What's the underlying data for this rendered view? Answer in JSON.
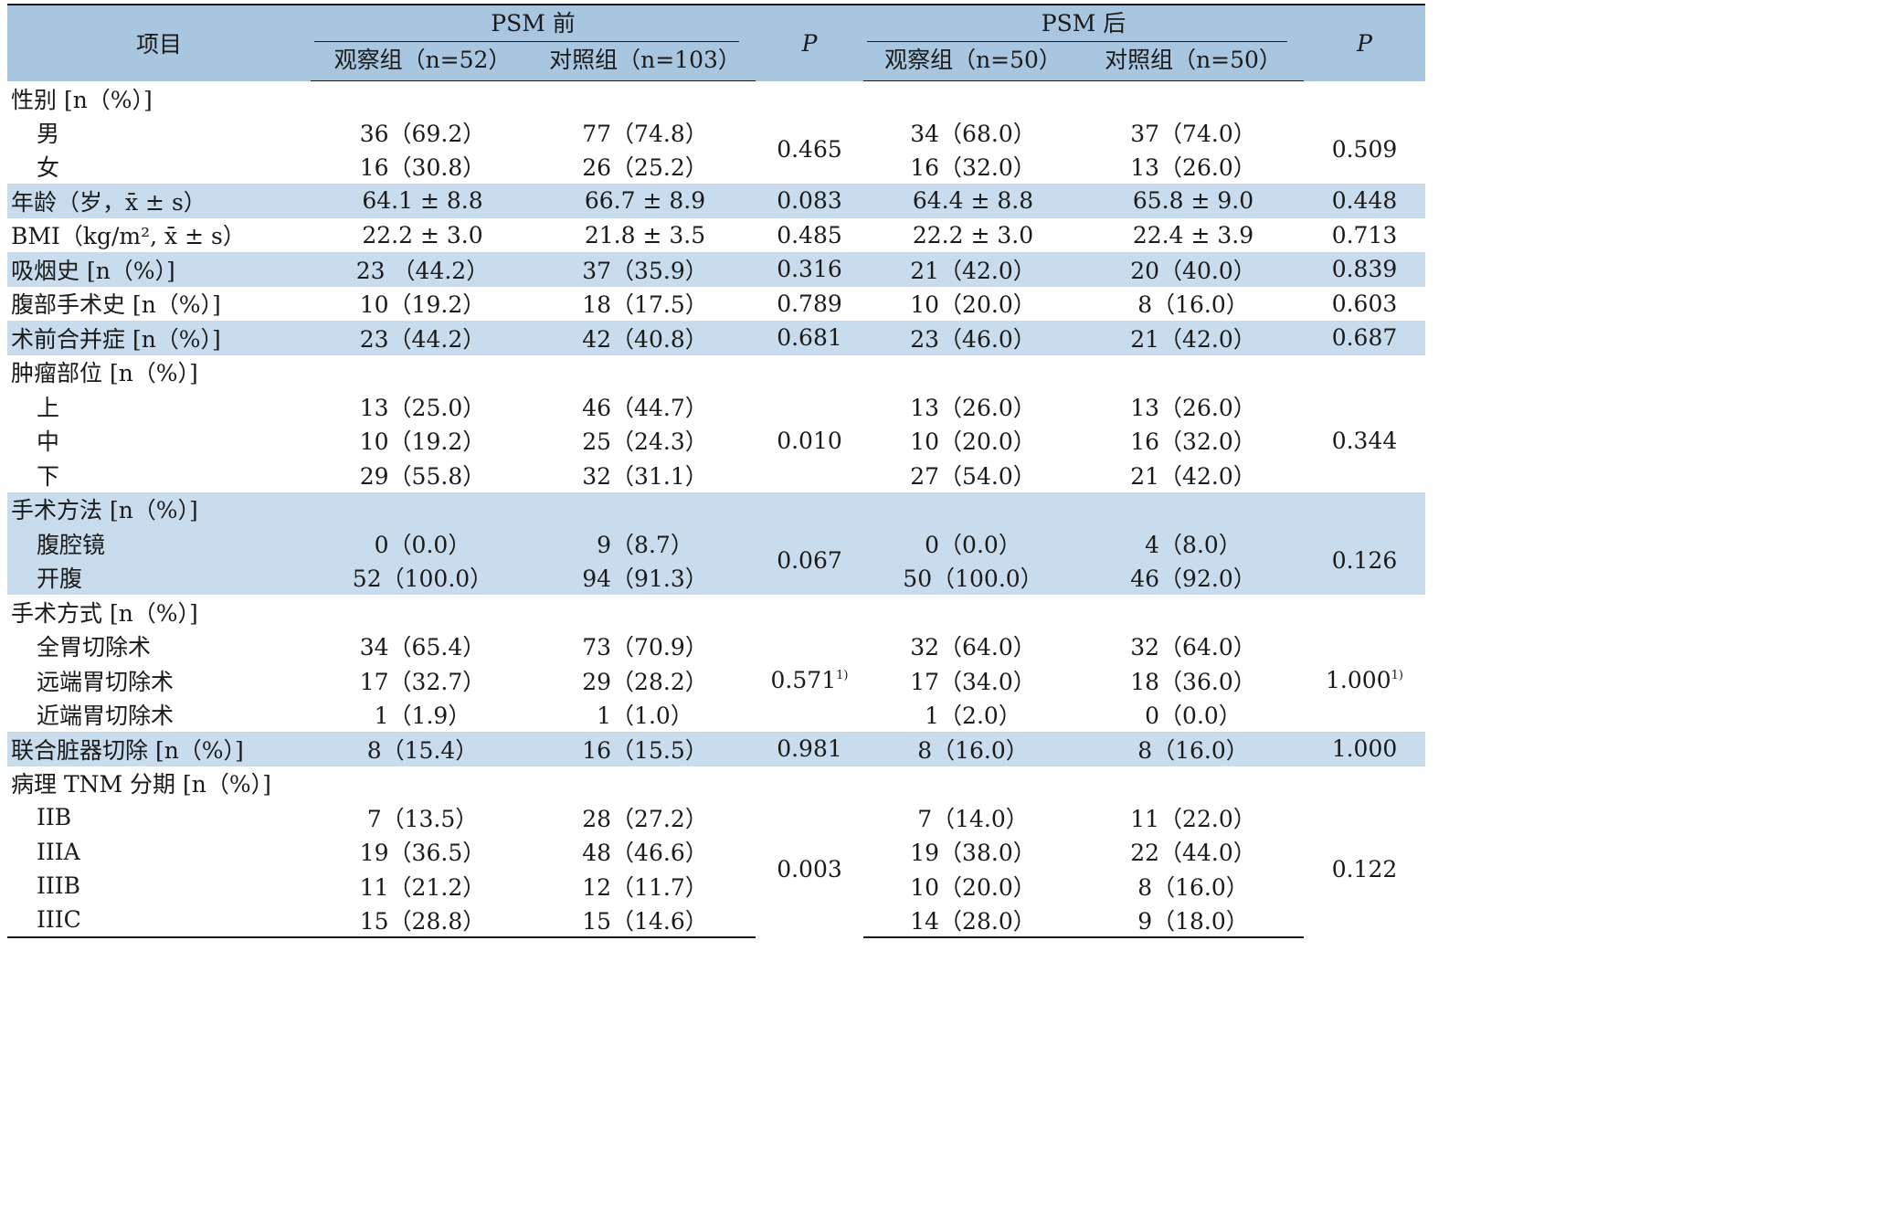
{
  "header": {
    "item": "项目",
    "pre_group": "PSM 前",
    "post_group": "PSM 后",
    "p_label": "P",
    "pre_obs": "观察组（n=52）",
    "pre_ctrl": "对照组（n=103）",
    "post_obs": "观察组（n=50）",
    "post_ctrl": "对照组（n=50）"
  },
  "footnote_mark": "1)",
  "sections": {
    "gender": {
      "title": "性别 [n（%）]",
      "rows": [
        {
          "label": "男",
          "pre_obs": "36（69.2）",
          "pre_ctrl": "77（74.8）",
          "post_obs": "34（68.0）",
          "post_ctrl": "37（74.0）"
        },
        {
          "label": "女",
          "pre_obs": "16（30.8）",
          "pre_ctrl": "26（25.2）",
          "post_obs": "16（32.0）",
          "post_ctrl": "13（26.0）"
        }
      ],
      "p_pre": "0.465",
      "p_post": "0.509"
    },
    "age": {
      "label": "年龄（岁，x̄ ± s）",
      "pre_obs": "64.1 ± 8.8",
      "pre_ctrl": "66.7 ± 8.9",
      "p_pre": "0.083",
      "post_obs": "64.4 ± 8.8",
      "post_ctrl": "65.8 ± 9.0",
      "p_post": "0.448"
    },
    "bmi": {
      "label": "BMI（kg/m², x̄ ± s）",
      "pre_obs": "22.2 ± 3.0",
      "pre_ctrl": "21.8 ± 3.5",
      "p_pre": "0.485",
      "post_obs": "22.2 ± 3.0",
      "post_ctrl": "22.4 ± 3.9",
      "p_post": "0.713"
    },
    "smoking": {
      "label": "吸烟史 [n（%）]",
      "pre_obs": "23 （44.2）",
      "pre_ctrl": "37（35.9）",
      "p_pre": "0.316",
      "post_obs": "21（42.0）",
      "post_ctrl": "20（40.0）",
      "p_post": "0.839"
    },
    "abd_surgery": {
      "label": "腹部手术史 [n（%）]",
      "pre_obs": "10（19.2）",
      "pre_ctrl": "18（17.5）",
      "p_pre": "0.789",
      "post_obs": "10（20.0）",
      "post_ctrl": "8（16.0）",
      "p_post": "0.603"
    },
    "comorbidity": {
      "label": "术前合并症 [n（%）]",
      "pre_obs": "23（44.2）",
      "pre_ctrl": "42（40.8）",
      "p_pre": "0.681",
      "post_obs": "23（46.0）",
      "post_ctrl": "21（42.0）",
      "p_post": "0.687"
    },
    "tumor_site": {
      "title": "肿瘤部位 [n（%）]",
      "rows": [
        {
          "label": "上",
          "pre_obs": "13（25.0）",
          "pre_ctrl": "46（44.7）",
          "post_obs": "13（26.0）",
          "post_ctrl": "13（26.0）"
        },
        {
          "label": "中",
          "pre_obs": "10（19.2）",
          "pre_ctrl": "25（24.3）",
          "post_obs": "10（20.0）",
          "post_ctrl": "16（32.0）"
        },
        {
          "label": "下",
          "pre_obs": "29（55.8）",
          "pre_ctrl": "32（31.1）",
          "post_obs": "27（54.0）",
          "post_ctrl": "21（42.0）"
        }
      ],
      "p_pre": "0.010",
      "p_post": "0.344"
    },
    "approach": {
      "title": "手术方法 [n（%）]",
      "rows": [
        {
          "label": "腹腔镜",
          "pre_obs": "0（0.0）",
          "pre_ctrl": "9（8.7）",
          "post_obs": "0（0.0）",
          "post_ctrl": "4（8.0）"
        },
        {
          "label": "开腹",
          "pre_obs": "52（100.0）",
          "pre_ctrl": "94（91.3）",
          "post_obs": "50（100.0）",
          "post_ctrl": "46（92.0）"
        }
      ],
      "p_pre": "0.067",
      "p_post": "0.126"
    },
    "procedure": {
      "title": "手术方式 [n（%）]",
      "rows": [
        {
          "label": "全胃切除术",
          "pre_obs": "34（65.4）",
          "pre_ctrl": "73（70.9）",
          "post_obs": "32（64.0）",
          "post_ctrl": "32（64.0）"
        },
        {
          "label": "远端胃切除术",
          "pre_obs": "17（32.7）",
          "pre_ctrl": "29（28.2）",
          "post_obs": "17（34.0）",
          "post_ctrl": "18（36.0）"
        },
        {
          "label": "近端胃切除术",
          "pre_obs": "1（1.9）",
          "pre_ctrl": "1（1.0）",
          "post_obs": "1（2.0）",
          "post_ctrl": "0（0.0）"
        }
      ],
      "p_pre": "0.571",
      "p_post": "1.000"
    },
    "combined_resection": {
      "label": "联合脏器切除 [n（%）]",
      "pre_obs": "8（15.4）",
      "pre_ctrl": "16（15.5）",
      "p_pre": "0.981",
      "post_obs": "8（16.0）",
      "post_ctrl": "8（16.0）",
      "p_post": "1.000"
    },
    "tnm": {
      "title": "病理 TNM 分期 [n（%）]",
      "rows": [
        {
          "label": "IIB",
          "pre_obs": "7（13.5）",
          "pre_ctrl": "28（27.2）",
          "post_obs": "7（14.0）",
          "post_ctrl": "11（22.0）"
        },
        {
          "label": "IIIA",
          "pre_obs": "19（36.5）",
          "pre_ctrl": "48（46.6）",
          "post_obs": "19（38.0）",
          "post_ctrl": "22（44.0）"
        },
        {
          "label": "IIIB",
          "pre_obs": "11（21.2）",
          "pre_ctrl": "12（11.7）",
          "post_obs": "10（20.0）",
          "post_ctrl": "8（16.0）"
        },
        {
          "label": "IIIC",
          "pre_obs": "15（28.8）",
          "pre_ctrl": "15（14.6）",
          "post_obs": "14（28.0）",
          "post_ctrl": "9（18.0）"
        }
      ],
      "p_pre": "0.003",
      "p_post": "0.122"
    }
  }
}
